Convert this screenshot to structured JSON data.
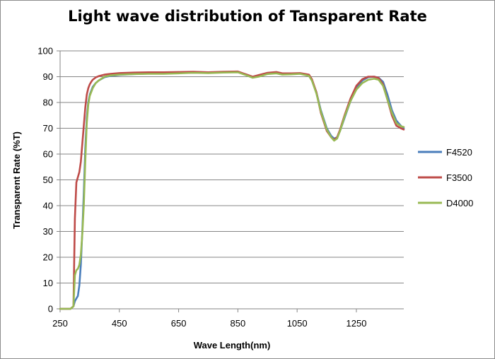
{
  "chart_data": {
    "type": "line",
    "title": "Light wave distribution of Tansparent Rate",
    "xlabel": "Wave Length(nm)",
    "ylabel": "Transparent Rate (%T)",
    "xlim": [
      250,
      1410
    ],
    "ylim": [
      0,
      100
    ],
    "xticks": [
      250,
      450,
      650,
      850,
      1050,
      1250
    ],
    "yticks": [
      0,
      10,
      20,
      30,
      40,
      50,
      60,
      70,
      80,
      90,
      100
    ],
    "grid": "horizontal",
    "legend_position": "right",
    "series": [
      {
        "name": "F4520",
        "color": "#4a7ebb",
        "x": [
          250,
          285,
          295,
          300,
          305,
          310,
          315,
          320,
          325,
          330,
          335,
          340,
          345,
          350,
          355,
          360,
          370,
          380,
          400,
          420,
          450,
          500,
          550,
          600,
          650,
          700,
          750,
          800,
          850,
          880,
          900,
          920,
          950,
          980,
          1000,
          1030,
          1060,
          1090,
          1100,
          1115,
          1130,
          1150,
          1165,
          1175,
          1185,
          1195,
          1210,
          1230,
          1250,
          1270,
          1290,
          1310,
          1325,
          1340,
          1355,
          1370,
          1385,
          1400,
          1410
        ],
        "y": [
          0,
          0,
          1,
          3,
          4,
          5,
          9,
          17,
          30,
          45,
          62,
          74,
          80,
          83,
          84.5,
          86,
          87.5,
          88.5,
          89.8,
          90.3,
          90.7,
          91,
          91.2,
          91.2,
          91.4,
          91.6,
          91.5,
          91.7,
          91.8,
          90.8,
          89.9,
          90.3,
          91.2,
          91.5,
          91,
          91.1,
          91.3,
          90.5,
          88.5,
          84,
          77,
          70,
          67,
          66,
          66.5,
          69,
          74,
          80.5,
          85.5,
          88.5,
          89.8,
          90,
          89.6,
          88,
          83,
          77,
          73,
          71,
          70
        ]
      },
      {
        "name": "F3500",
        "color": "#be4b48",
        "x": [
          250,
          285,
          295,
          300,
          305,
          310,
          315,
          320,
          325,
          330,
          335,
          340,
          345,
          350,
          355,
          360,
          370,
          380,
          400,
          420,
          450,
          500,
          550,
          600,
          650,
          700,
          750,
          800,
          850,
          880,
          900,
          920,
          950,
          980,
          1000,
          1030,
          1060,
          1090,
          1100,
          1115,
          1130,
          1150,
          1165,
          1175,
          1185,
          1195,
          1210,
          1230,
          1250,
          1270,
          1290,
          1310,
          1325,
          1340,
          1355,
          1370,
          1385,
          1400,
          1410
        ],
        "y": [
          0,
          0,
          1,
          35,
          49,
          51,
          53,
          57,
          64,
          71,
          78,
          83,
          85.5,
          87,
          88,
          88.8,
          89.7,
          90.2,
          90.8,
          91.1,
          91.4,
          91.6,
          91.7,
          91.7,
          91.8,
          91.9,
          91.7,
          91.9,
          92,
          90.8,
          90,
          90.6,
          91.5,
          91.8,
          91.3,
          91.3,
          91.4,
          90.8,
          89,
          84,
          76,
          69,
          66.5,
          65.5,
          66.5,
          69.5,
          75,
          81.5,
          86.5,
          89,
          90,
          90,
          89.5,
          87,
          81,
          75,
          71,
          70,
          69.5
        ]
      },
      {
        "name": "D4000",
        "color": "#98b954",
        "x": [
          250,
          285,
          295,
          300,
          305,
          310,
          315,
          320,
          325,
          330,
          335,
          340,
          345,
          350,
          355,
          360,
          370,
          380,
          400,
          420,
          450,
          500,
          550,
          600,
          650,
          700,
          750,
          800,
          850,
          880,
          900,
          920,
          950,
          980,
          1000,
          1030,
          1060,
          1090,
          1100,
          1115,
          1130,
          1150,
          1165,
          1175,
          1185,
          1195,
          1210,
          1230,
          1250,
          1270,
          1290,
          1310,
          1325,
          1340,
          1355,
          1370,
          1385,
          1400,
          1410
        ],
        "y": [
          0,
          0,
          1,
          13,
          15,
          15.5,
          17,
          21,
          29,
          40,
          57,
          72,
          79,
          82.5,
          84,
          85.5,
          87.5,
          88.5,
          90,
          90.5,
          90.8,
          91,
          91.1,
          91.1,
          91.3,
          91.5,
          91.4,
          91.6,
          91.7,
          90.5,
          89.6,
          90,
          91,
          91.3,
          90.8,
          90.9,
          91.1,
          90.3,
          88.5,
          83.5,
          76.5,
          69.5,
          66.5,
          65.2,
          66,
          69,
          74.5,
          80.5,
          85,
          87.5,
          88.8,
          89.2,
          88.8,
          86.5,
          81,
          76,
          72,
          70.8,
          70.5
        ]
      }
    ]
  }
}
